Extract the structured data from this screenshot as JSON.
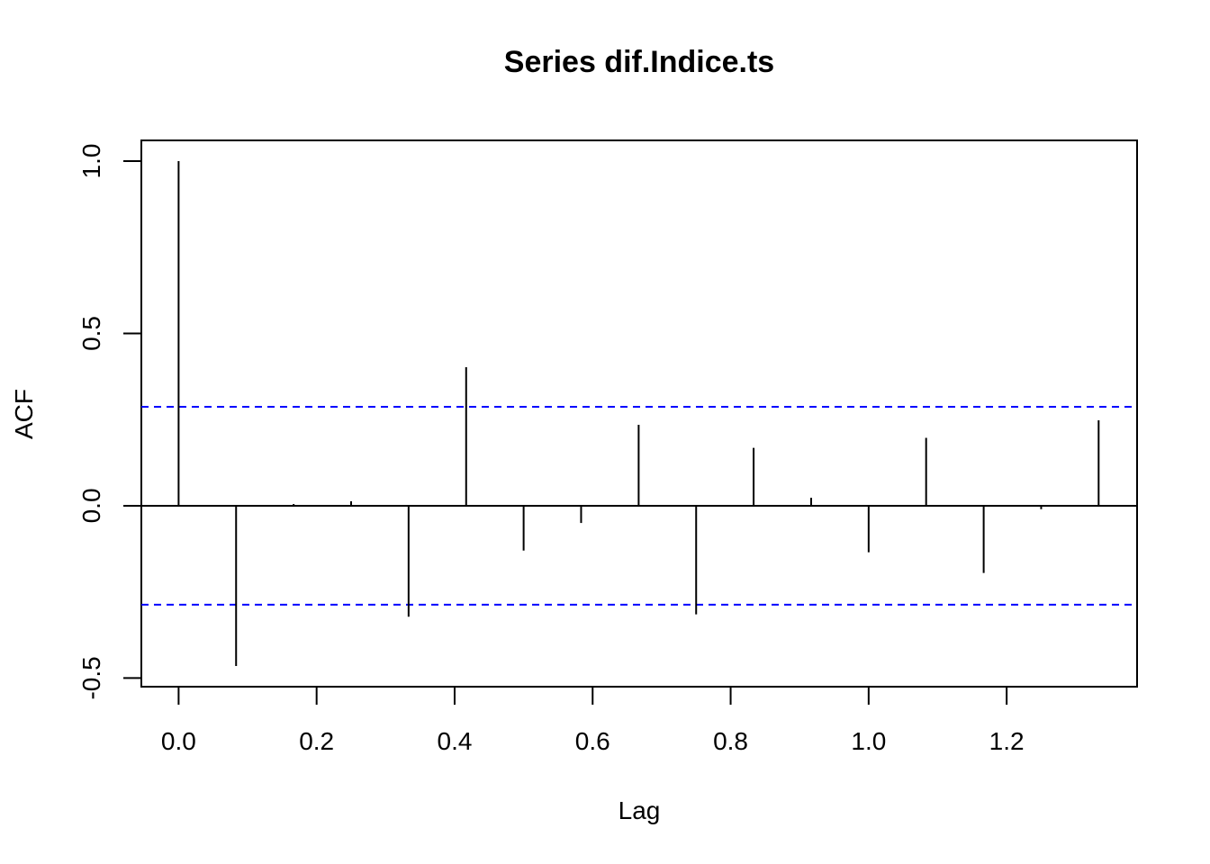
{
  "chart_data": {
    "type": "bar",
    "title": "Series dif.Indice.ts",
    "xlabel": "Lag",
    "ylabel": "ACF",
    "xlim": [
      -0.054,
      1.389
    ],
    "ylim": [
      -0.525,
      1.06
    ],
    "x_ticks": [
      0.0,
      0.2,
      0.4,
      0.6,
      0.8,
      1.0,
      1.2
    ],
    "x_tick_labels": [
      "0.0",
      "0.2",
      "0.4",
      "0.6",
      "0.8",
      "1.0",
      "1.2"
    ],
    "y_ticks": [
      -0.5,
      0.0,
      0.5,
      1.0
    ],
    "y_tick_labels": [
      "-0.5",
      "0.0",
      "0.5",
      "1.0"
    ],
    "lags": [
      0.0,
      0.0833,
      0.1667,
      0.25,
      0.3333,
      0.4167,
      0.5,
      0.5833,
      0.6667,
      0.75,
      0.8333,
      0.9167,
      1.0,
      1.0833,
      1.1667,
      1.25,
      1.3333
    ],
    "acf": [
      1.0,
      -0.465,
      0.005,
      0.013,
      -0.322,
      0.402,
      -0.13,
      -0.05,
      0.235,
      -0.315,
      0.168,
      0.023,
      -0.135,
      0.197,
      -0.195,
      -0.01,
      0.248
    ],
    "confidence_bound": 0.287,
    "grid": false,
    "colors": {
      "bars": "#000000",
      "confidence": "#0000ff",
      "axes": "#000000"
    }
  }
}
